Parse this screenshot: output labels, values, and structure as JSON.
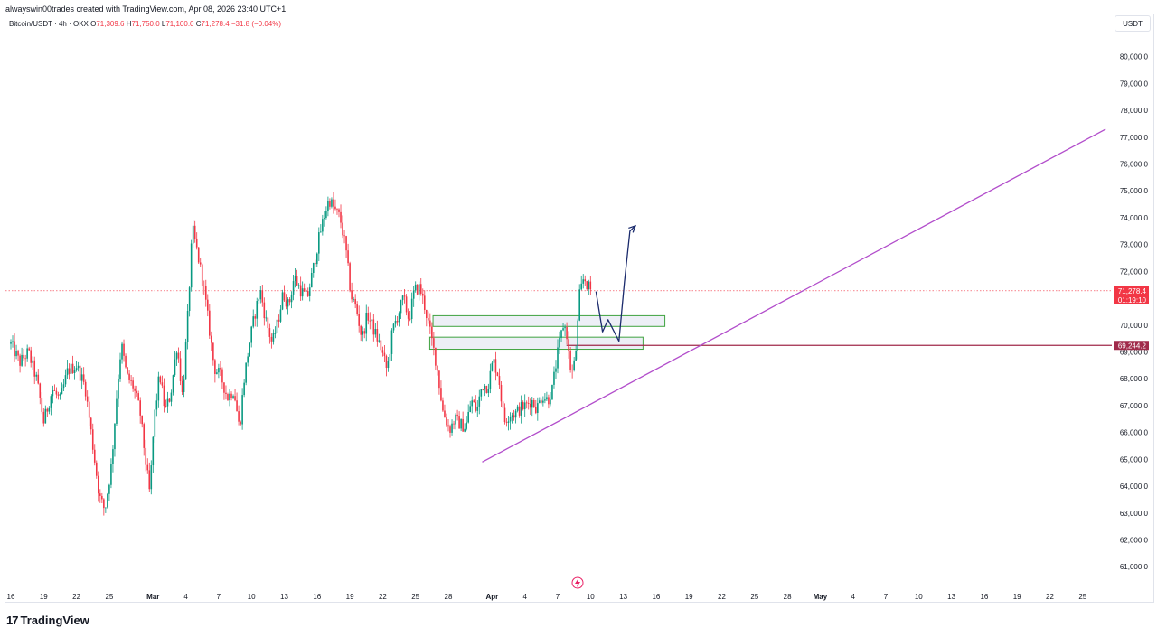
{
  "credit": "alwayswin00trades created with TradingView.com, Apr 08, 2026 23:40 UTC+1",
  "legend": {
    "symbol": "Bitcoin/USDT · 4h · OKX",
    "o_label": "O",
    "o_value": "71,309.6",
    "h_label": "H",
    "h_value": "71,750.0",
    "l_label": "L",
    "l_value": "71,100.0",
    "c_label": "C",
    "c_value": "71,278.4",
    "change": "−31.8 (−0.04%)"
  },
  "currency": "USDT",
  "logo": {
    "mark": "17",
    "text": "TradingView"
  },
  "chart_data": {
    "type": "candlestick",
    "timeframe": "4h",
    "ylim": [
      60300,
      81100
    ],
    "y_ticks": [
      61000,
      62000,
      63000,
      64000,
      65000,
      66000,
      67000,
      68000,
      69000,
      70000,
      71000,
      72000,
      73000,
      74000,
      75000,
      76000,
      77000,
      78000,
      79000,
      80000
    ],
    "y_tick_labels": [
      "61,000.0",
      "62,000.0",
      "63,000.0",
      "64,000.0",
      "65,000.0",
      "66,000.0",
      "67,000.0",
      "68,000.0",
      "69,000.0",
      "70,000.0",
      "71,000.0",
      "72,000.0",
      "73,000.0",
      "74,000.0",
      "75,000.0",
      "76,000.0",
      "77,000.0",
      "78,000.0",
      "79,000.0",
      "80,000.0"
    ],
    "x_ticks": [
      {
        "day": 0,
        "label": "16"
      },
      {
        "day": 3,
        "label": "19"
      },
      {
        "day": 6,
        "label": "22"
      },
      {
        "day": 9,
        "label": "25"
      },
      {
        "day": 13,
        "label": "Mar",
        "bold": true
      },
      {
        "day": 16,
        "label": "4"
      },
      {
        "day": 19,
        "label": "7"
      },
      {
        "day": 22,
        "label": "10"
      },
      {
        "day": 25,
        "label": "13"
      },
      {
        "day": 28,
        "label": "16"
      },
      {
        "day": 31,
        "label": "19"
      },
      {
        "day": 34,
        "label": "22"
      },
      {
        "day": 37,
        "label": "25"
      },
      {
        "day": 40,
        "label": "28"
      },
      {
        "day": 44,
        "label": "Apr",
        "bold": true
      },
      {
        "day": 47,
        "label": "4"
      },
      {
        "day": 50,
        "label": "7"
      },
      {
        "day": 53,
        "label": "10"
      },
      {
        "day": 56,
        "label": "13"
      },
      {
        "day": 59,
        "label": "16"
      },
      {
        "day": 62,
        "label": "19"
      },
      {
        "day": 65,
        "label": "22"
      },
      {
        "day": 68,
        "label": "25"
      },
      {
        "day": 71,
        "label": "28"
      },
      {
        "day": 74,
        "label": "May",
        "bold": true
      },
      {
        "day": 77,
        "label": "4"
      },
      {
        "day": 80,
        "label": "7"
      },
      {
        "day": 83,
        "label": "10"
      },
      {
        "day": 86,
        "label": "13"
      },
      {
        "day": 89,
        "label": "16"
      },
      {
        "day": 92,
        "label": "19"
      },
      {
        "day": 95,
        "label": "22"
      },
      {
        "day": 98,
        "label": "25"
      }
    ],
    "price_path": [
      [
        0,
        69300
      ],
      [
        0.8,
        68600
      ],
      [
        1.6,
        69000
      ],
      [
        2.4,
        67900
      ],
      [
        3,
        66400
      ],
      [
        3.8,
        67600
      ],
      [
        4.5,
        67200
      ],
      [
        5.2,
        68300
      ],
      [
        6,
        68500
      ],
      [
        6.8,
        67700
      ],
      [
        7.5,
        65500
      ],
      [
        8.1,
        63600
      ],
      [
        8.6,
        63100
      ],
      [
        9.2,
        64800
      ],
      [
        9.7,
        67500
      ],
      [
        10.1,
        69300
      ],
      [
        10.6,
        68100
      ],
      [
        11.2,
        67700
      ],
      [
        11.8,
        66800
      ],
      [
        12.3,
        65000
      ],
      [
        12.7,
        63700
      ],
      [
        13.1,
        66500
      ],
      [
        13.6,
        68200
      ],
      [
        14.1,
        66800
      ],
      [
        14.6,
        67400
      ],
      [
        15.2,
        69300
      ],
      [
        15.7,
        67300
      ],
      [
        16.2,
        70500
      ],
      [
        16.6,
        73600
      ],
      [
        17.1,
        72600
      ],
      [
        17.6,
        71500
      ],
      [
        18.1,
        70000
      ],
      [
        18.6,
        68400
      ],
      [
        19.2,
        68100
      ],
      [
        19.8,
        67300
      ],
      [
        20.4,
        67600
      ],
      [
        20.9,
        66100
      ],
      [
        21.3,
        67900
      ],
      [
        21.8,
        69300
      ],
      [
        22.3,
        70400
      ],
      [
        22.8,
        71300
      ],
      [
        23.3,
        70200
      ],
      [
        23.9,
        69300
      ],
      [
        24.4,
        70100
      ],
      [
        24.9,
        71200
      ],
      [
        25.4,
        70700
      ],
      [
        25.9,
        71800
      ],
      [
        26.5,
        71300
      ],
      [
        27.1,
        71000
      ],
      [
        27.6,
        72000
      ],
      [
        28.1,
        73100
      ],
      [
        28.6,
        74000
      ],
      [
        29.1,
        74700
      ],
      [
        29.6,
        74300
      ],
      [
        30.1,
        74000
      ],
      [
        30.6,
        72900
      ],
      [
        31.1,
        71100
      ],
      [
        31.6,
        70600
      ],
      [
        32.1,
        69500
      ],
      [
        32.6,
        70400
      ],
      [
        33.2,
        69800
      ],
      [
        33.8,
        69200
      ],
      [
        34.4,
        68300
      ],
      [
        34.9,
        69800
      ],
      [
        35.4,
        70400
      ],
      [
        35.9,
        71000
      ],
      [
        36.4,
        70200
      ],
      [
        36.9,
        71300
      ],
      [
        37.4,
        71400
      ],
      [
        37.9,
        70600
      ],
      [
        38.4,
        69600
      ],
      [
        38.9,
        68600
      ],
      [
        39.5,
        66800
      ],
      [
        40.1,
        66100
      ],
      [
        40.6,
        66500
      ],
      [
        41.1,
        66300
      ],
      [
        41.6,
        66200
      ],
      [
        42.1,
        67200
      ],
      [
        42.6,
        66800
      ],
      [
        43.1,
        67800
      ],
      [
        43.6,
        67700
      ],
      [
        44.1,
        68700
      ],
      [
        44.6,
        68100
      ],
      [
        45.1,
        66400
      ],
      [
        45.6,
        66700
      ],
      [
        46.1,
        66700
      ],
      [
        46.6,
        66900
      ],
      [
        47.1,
        67000
      ],
      [
        47.6,
        67200
      ],
      [
        48.1,
        66900
      ],
      [
        48.6,
        67400
      ],
      [
        49.1,
        67200
      ],
      [
        49.5,
        67600
      ],
      [
        49.9,
        68700
      ],
      [
        50.2,
        69400
      ],
      [
        50.5,
        70000
      ],
      [
        50.8,
        69800
      ],
      [
        51.1,
        68500
      ],
      [
        51.4,
        68200
      ],
      [
        51.7,
        69200
      ],
      [
        52,
        71100
      ],
      [
        52.4,
        71800
      ],
      [
        52.8,
        71400
      ],
      [
        53.1,
        71278
      ]
    ],
    "drawings": {
      "current_price": {
        "value": 71278.4,
        "label": "71,278.4",
        "countdown": "01:19:10",
        "color": "#f23645"
      },
      "support_level": {
        "value": 69244.2,
        "label": "69,244.2",
        "color": "#a02a4a"
      },
      "trendline": {
        "start": {
          "day": 43.1,
          "price": 64900
        },
        "end": {
          "day": 100.1,
          "price": 77300
        },
        "color": "#b24dcb"
      },
      "zones": [
        {
          "day_from": 38.6,
          "day_to": 59.8,
          "price_low": 69950,
          "price_high": 70350
        },
        {
          "day_from": 38.3,
          "day_to": 57.8,
          "price_low": 69100,
          "price_high": 69550
        }
      ],
      "projection_path": [
        [
          53.5,
          71250
        ],
        [
          54.1,
          69750
        ],
        [
          54.6,
          70200
        ],
        [
          55.6,
          69400
        ],
        [
          56.1,
          71600
        ],
        [
          56.6,
          73500
        ],
        [
          57.1,
          73700
        ]
      ],
      "projection_color": "#1a2a6c"
    },
    "up_color": "#089981",
    "down_color": "#f23645"
  }
}
